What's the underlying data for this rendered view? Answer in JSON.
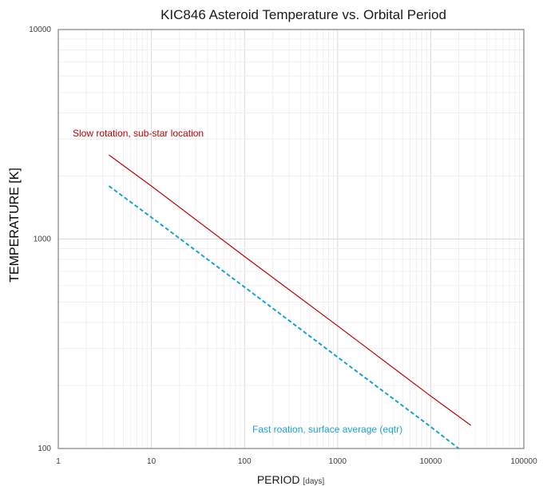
{
  "chart_data": {
    "type": "line",
    "title": "KIC846 Asteroid Temperature vs. Orbital Period",
    "xlabel": "PERIOD",
    "xlabel_unit": "[days]",
    "ylabel": "TEMPERATURE [K]",
    "x_scale": "log",
    "y_scale": "log",
    "xlim": [
      1,
      100000
    ],
    "ylim": [
      100,
      10000
    ],
    "x_ticks": [
      "1",
      "10",
      "100",
      "1000",
      "10000",
      "100000"
    ],
    "y_ticks": [
      "100",
      "1000",
      "10000"
    ],
    "grid": true,
    "series": [
      {
        "annotation": "Slow rotation, sub-star location",
        "color": "#c00000",
        "style": "solid",
        "x": [
          3.5,
          10,
          100,
          1000,
          10000,
          27000
        ],
        "y": [
          2520,
          1790,
          825,
          385,
          178,
          129
        ]
      },
      {
        "annotation": "Fast roation, surface average (eqtr)",
        "color": "#1ba1d6",
        "style": "dashed",
        "x": [
          3.5,
          10,
          100,
          1000,
          10000,
          20000
        ],
        "y": [
          1790,
          1270,
          590,
          273,
          127,
          100
        ]
      }
    ]
  }
}
